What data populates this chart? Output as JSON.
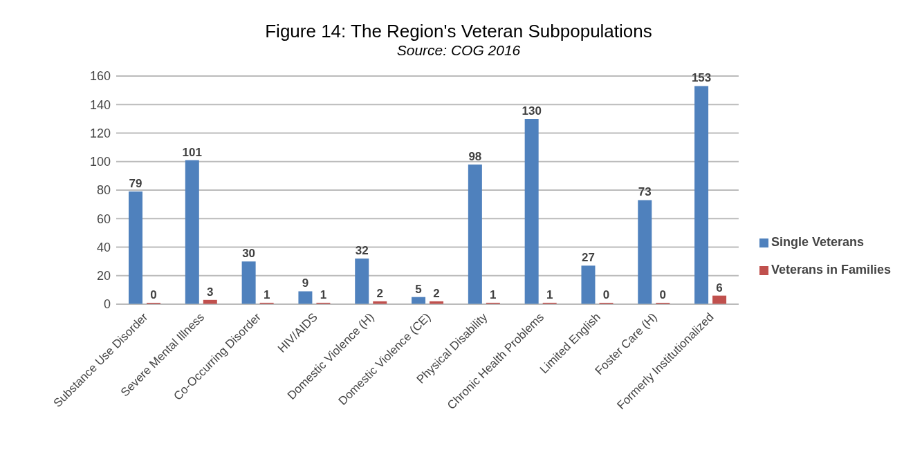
{
  "chart_data": {
    "type": "bar",
    "title": "Figure 14: The Region's Veteran Subpopulations",
    "subtitle": "Source: COG 2016",
    "categories": [
      "Substance Use Disorder",
      "Severe Mental Illness",
      "Co-Occurring Disorder",
      "HIV/AIDS",
      "Domestic Violence (H)",
      "Domestic Violence (CE)",
      "Physical Disability",
      "Chronic Health Problems",
      "Limited English",
      "Foster Care (H)",
      "Formerly Institutionalized"
    ],
    "series": [
      {
        "name": "Single Veterans",
        "color": "#4f81bd",
        "values": [
          79,
          101,
          30,
          9,
          32,
          5,
          98,
          130,
          27,
          73,
          153
        ]
      },
      {
        "name": "Veterans in Families",
        "color": "#c0504d",
        "values": [
          0,
          3,
          1,
          1,
          2,
          2,
          1,
          1,
          0,
          0,
          6
        ]
      }
    ],
    "ylim": [
      0,
      160
    ],
    "yticks": [
      0,
      20,
      40,
      60,
      80,
      100,
      120,
      140,
      160
    ],
    "grid": "y",
    "legend": "right",
    "data_labels": true
  }
}
